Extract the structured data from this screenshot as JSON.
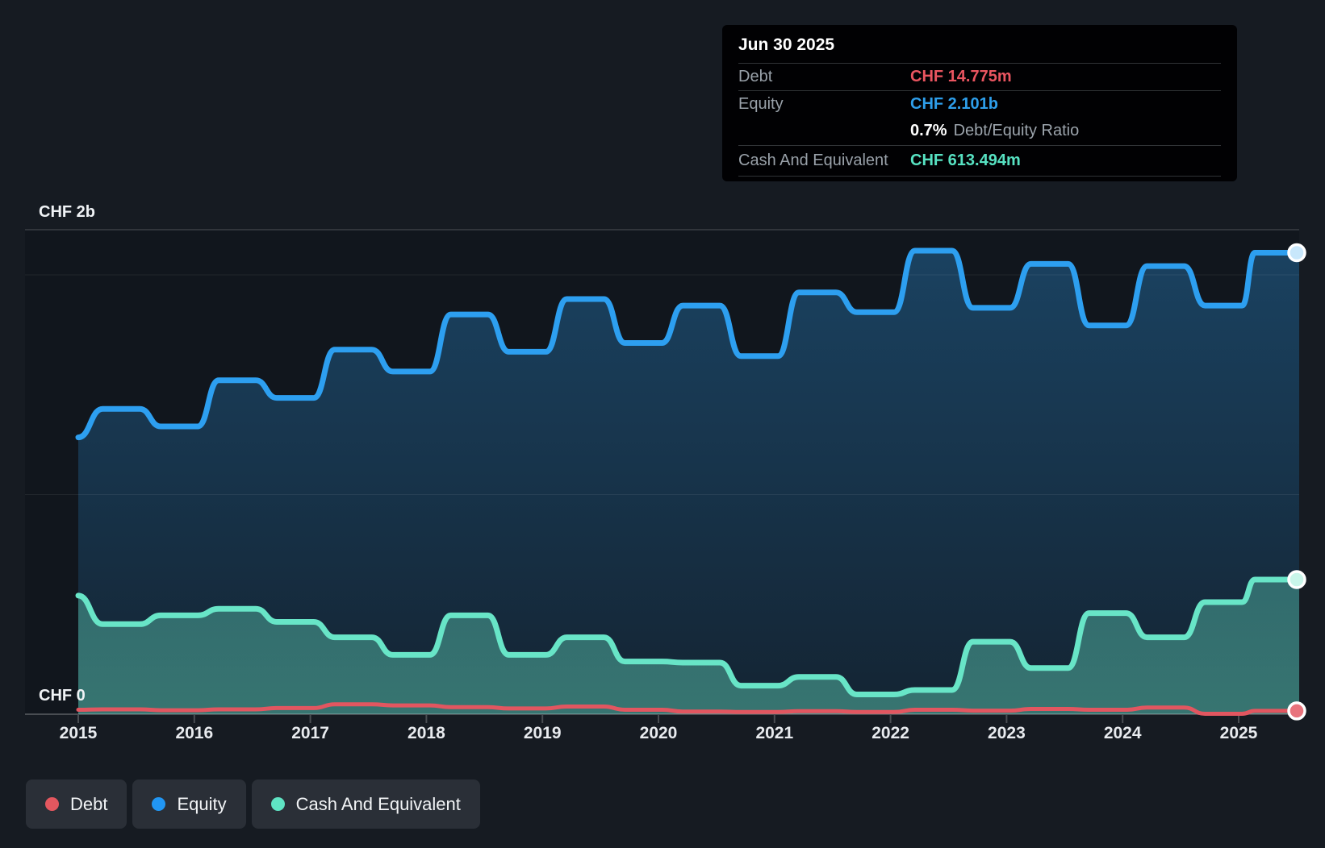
{
  "tooltip": {
    "date": "Jun 30 2025",
    "debt_label": "Debt",
    "debt_value": "CHF 14.775m",
    "equity_label": "Equity",
    "equity_value": "CHF 2.101b",
    "ratio_value": "0.7%",
    "ratio_text": "Debt/Equity Ratio",
    "cash_label": "Cash And Equivalent",
    "cash_value": "CHF 613.494m"
  },
  "legend": {
    "items": [
      {
        "label": "Debt",
        "color": "#E4575F"
      },
      {
        "label": "Equity",
        "color": "#2196F3"
      },
      {
        "label": "Cash And Equivalent",
        "color": "#5FE3C3"
      }
    ]
  },
  "colors": {
    "background": "#161B22",
    "plot_background": "#11161D",
    "tooltip_background": "#010103",
    "debt": "#E25660",
    "equity": "#2D9FF0",
    "cash": "#68E5C7",
    "axis_text": "#E8EBEF"
  },
  "chart_data": {
    "type": "area",
    "title": "",
    "unit": "CHF billions",
    "x_ticks": [
      "2015",
      "2016",
      "2017",
      "2018",
      "2019",
      "2020",
      "2021",
      "2022",
      "2023",
      "2024",
      "2025"
    ],
    "xlim": [
      2015,
      2025.55
    ],
    "ylim": [
      0,
      2.2
    ],
    "y_gridlines": [
      0,
      1,
      2
    ],
    "y_top_label": "CHF 2b",
    "y_zero_label": "CHF 0",
    "grid": true,
    "legend_position": "bottom-left",
    "last_point_date": "Jun 30 2025",
    "series": [
      {
        "name": "Equity",
        "color": "#2D9FF0",
        "marker_fill": "#C8E7FB",
        "width": 7,
        "fill": true,
        "points": [
          [
            2015.0,
            1.26
          ],
          [
            2015.37,
            1.39
          ],
          [
            2015.87,
            1.31
          ],
          [
            2016.37,
            1.52
          ],
          [
            2016.87,
            1.44
          ],
          [
            2017.37,
            1.66
          ],
          [
            2017.87,
            1.56
          ],
          [
            2018.37,
            1.82
          ],
          [
            2018.87,
            1.65
          ],
          [
            2019.37,
            1.89
          ],
          [
            2019.87,
            1.69
          ],
          [
            2020.37,
            1.86
          ],
          [
            2020.87,
            1.63
          ],
          [
            2021.37,
            1.92
          ],
          [
            2021.87,
            1.83
          ],
          [
            2022.37,
            2.11
          ],
          [
            2022.87,
            1.85
          ],
          [
            2023.37,
            2.05
          ],
          [
            2023.87,
            1.77
          ],
          [
            2024.37,
            2.04
          ],
          [
            2024.87,
            1.86
          ],
          [
            2025.3,
            2.101
          ]
        ]
      },
      {
        "name": "Cash And Equivalent",
        "color": "#68E5C7",
        "marker_fill": "#C9F6EA",
        "width": 7,
        "fill": true,
        "points": [
          [
            2015.0,
            0.54
          ],
          [
            2015.37,
            0.41
          ],
          [
            2015.87,
            0.45
          ],
          [
            2016.37,
            0.48
          ],
          [
            2016.87,
            0.42
          ],
          [
            2017.37,
            0.35
          ],
          [
            2017.87,
            0.27
          ],
          [
            2018.37,
            0.45
          ],
          [
            2018.87,
            0.27
          ],
          [
            2019.37,
            0.35
          ],
          [
            2019.87,
            0.24
          ],
          [
            2020.37,
            0.235
          ],
          [
            2020.87,
            0.13
          ],
          [
            2021.37,
            0.17
          ],
          [
            2021.87,
            0.09
          ],
          [
            2022.37,
            0.11
          ],
          [
            2022.87,
            0.33
          ],
          [
            2023.37,
            0.21
          ],
          [
            2023.87,
            0.46
          ],
          [
            2024.37,
            0.35
          ],
          [
            2024.87,
            0.51
          ],
          [
            2025.3,
            0.613
          ]
        ]
      },
      {
        "name": "Debt",
        "color": "#E25660",
        "marker_fill": "#E8737C",
        "width": 5,
        "fill": false,
        "points": [
          [
            2015.0,
            0.02
          ],
          [
            2015.37,
            0.022
          ],
          [
            2015.87,
            0.018
          ],
          [
            2016.37,
            0.022
          ],
          [
            2016.87,
            0.028
          ],
          [
            2017.37,
            0.045
          ],
          [
            2017.87,
            0.04
          ],
          [
            2018.37,
            0.032
          ],
          [
            2018.87,
            0.026
          ],
          [
            2019.37,
            0.035
          ],
          [
            2019.87,
            0.02
          ],
          [
            2020.37,
            0.012
          ],
          [
            2020.87,
            0.01
          ],
          [
            2021.37,
            0.014
          ],
          [
            2021.87,
            0.01
          ],
          [
            2022.37,
            0.02
          ],
          [
            2022.87,
            0.016
          ],
          [
            2023.37,
            0.024
          ],
          [
            2023.87,
            0.02
          ],
          [
            2024.37,
            0.03
          ],
          [
            2024.87,
            0.002
          ],
          [
            2025.3,
            0.015
          ]
        ]
      }
    ]
  }
}
